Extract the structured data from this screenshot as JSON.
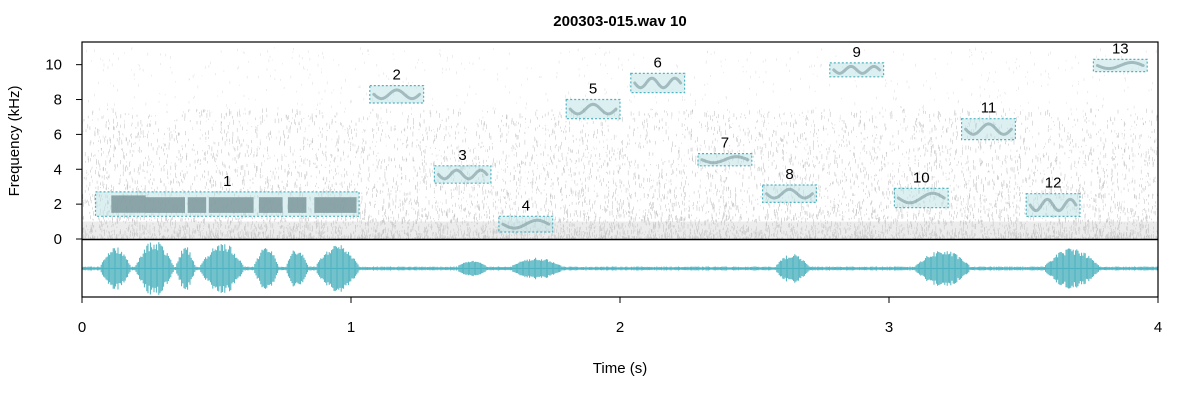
{
  "chart_data": {
    "type": "spectrogram",
    "title": "200303-015.wav 10",
    "xlabel": "Time (s)",
    "ylabel": "Frequency (kHz)",
    "xlim": [
      0,
      4
    ],
    "ylim": [
      0,
      11.3
    ],
    "x_ticks": [
      "0",
      "1",
      "2",
      "3",
      "4"
    ],
    "y_ticks": [
      "0",
      "2",
      "4",
      "6",
      "8",
      "10"
    ],
    "grid": false,
    "colors": {
      "selection_fill": "#bfe3e8",
      "selection_border": "#4fb3c0",
      "waveform": "#4fb3c0",
      "call_ink": "#2a3b40"
    },
    "selections": [
      {
        "label": "1",
        "t0": 0.05,
        "t1": 1.03,
        "f0": 1.3,
        "f1": 2.7
      },
      {
        "label": "2",
        "t0": 1.07,
        "t1": 1.27,
        "f0": 7.8,
        "f1": 8.8
      },
      {
        "label": "3",
        "t0": 1.31,
        "t1": 1.52,
        "f0": 3.2,
        "f1": 4.2
      },
      {
        "label": "4",
        "t0": 1.55,
        "t1": 1.75,
        "f0": 0.4,
        "f1": 1.3
      },
      {
        "label": "5",
        "t0": 1.8,
        "t1": 2.0,
        "f0": 6.9,
        "f1": 8.0
      },
      {
        "label": "6",
        "t0": 2.04,
        "t1": 2.24,
        "f0": 8.4,
        "f1": 9.5
      },
      {
        "label": "7",
        "t0": 2.29,
        "t1": 2.49,
        "f0": 4.2,
        "f1": 4.9
      },
      {
        "label": "8",
        "t0": 2.53,
        "t1": 2.73,
        "f0": 2.1,
        "f1": 3.1
      },
      {
        "label": "9",
        "t0": 2.78,
        "t1": 2.98,
        "f0": 9.3,
        "f1": 10.1
      },
      {
        "label": "10",
        "t0": 3.02,
        "t1": 3.22,
        "f0": 1.8,
        "f1": 2.9
      },
      {
        "label": "11",
        "t0": 3.27,
        "t1": 3.47,
        "f0": 5.7,
        "f1": 6.9
      },
      {
        "label": "12",
        "t0": 3.51,
        "t1": 3.71,
        "f0": 1.3,
        "f1": 2.6
      },
      {
        "label": "13",
        "t0": 3.76,
        "t1": 3.96,
        "f0": 9.6,
        "f1": 10.3
      }
    ]
  }
}
